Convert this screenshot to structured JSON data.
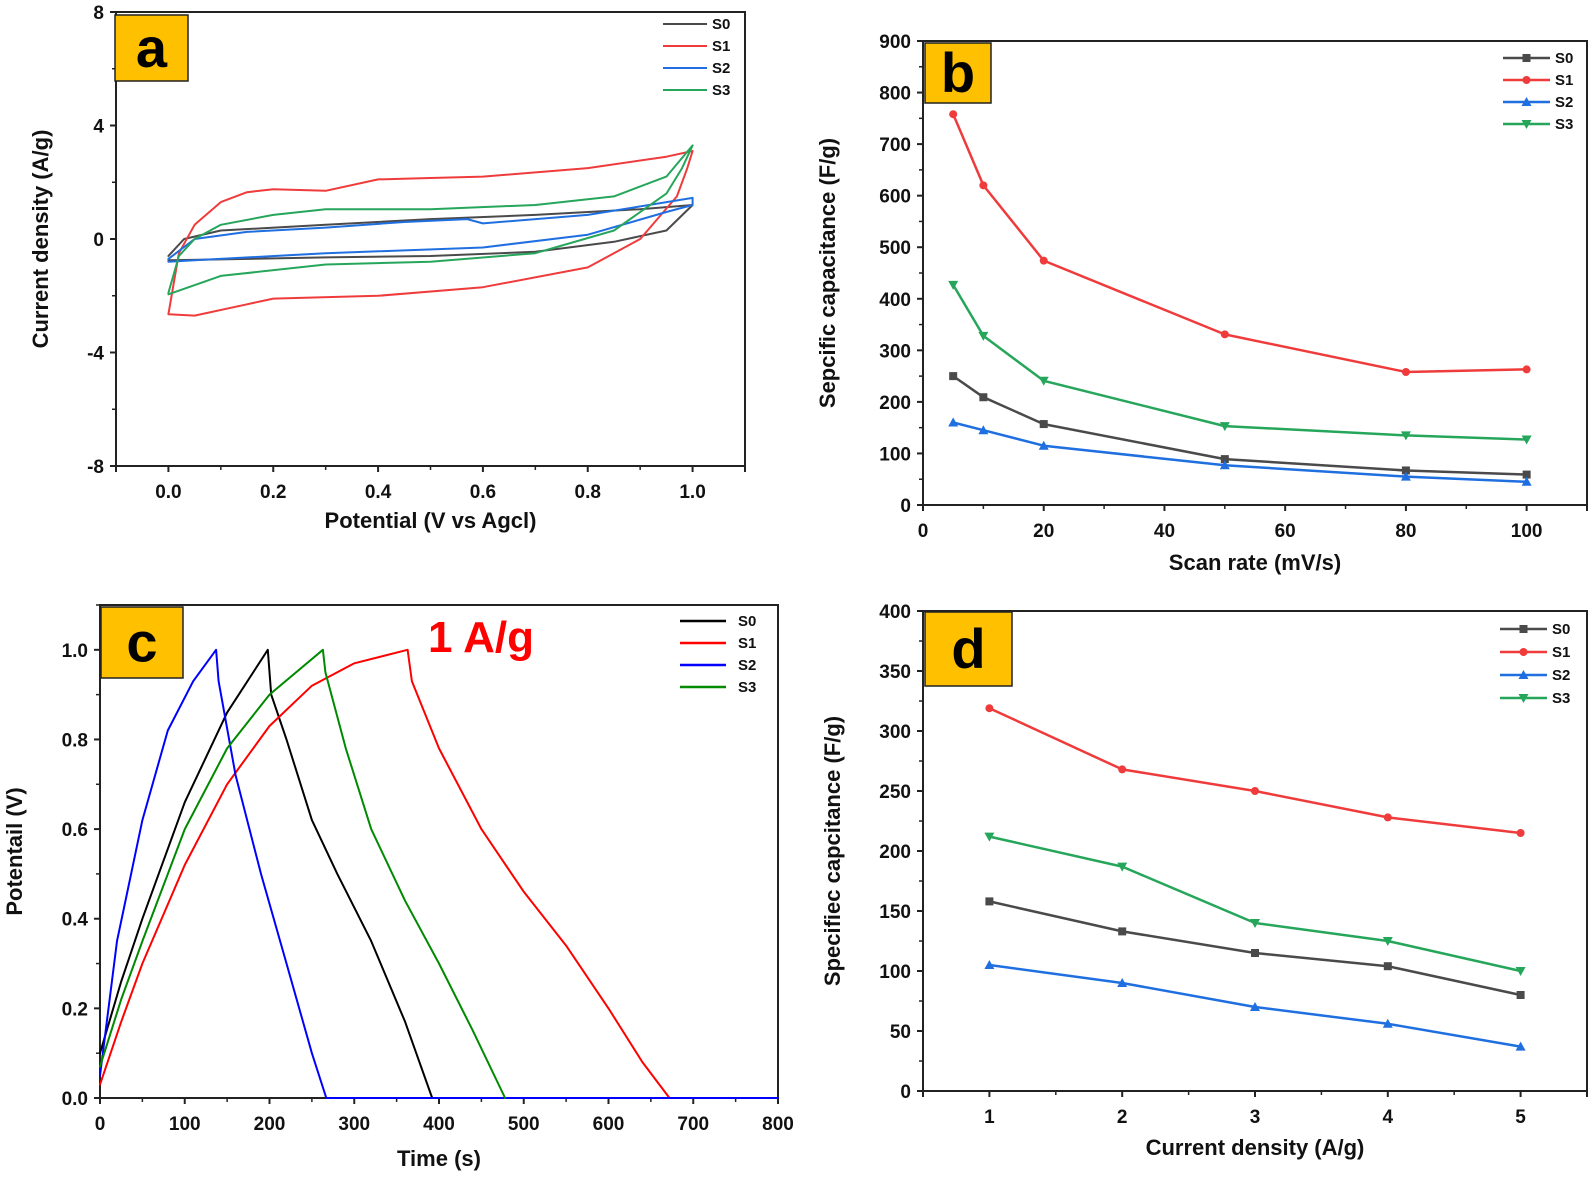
{
  "colors": {
    "S0_scatter": "#4a4a4a",
    "S1_scatter": "#ef3b3b",
    "S2_scatter": "#1f6fe0",
    "S3_scatter": "#26a65b",
    "S0_gcd": "#000000",
    "S1_gcd": "#ff0000",
    "S2_gcd": "#0000ff",
    "S3_gcd": "#008a00",
    "label_box": "#ffc000",
    "annotation": "#ff0000"
  },
  "chart_data": [
    {
      "panel": "a",
      "type": "line",
      "title": "",
      "xlabel": "Potential (V vs Agcl)",
      "ylabel": "Current density (A/g)",
      "xlim": [
        -0.1,
        1.1
      ],
      "ylim": [
        -8,
        8
      ],
      "xticks": [
        "0.0",
        "0.2",
        "0.4",
        "0.6",
        "0.8",
        "1.0"
      ],
      "xtick_values": [
        0.0,
        0.2,
        0.4,
        0.6,
        0.8,
        1.0
      ],
      "yticks": [
        "8",
        "4",
        "0",
        "-4",
        "-8"
      ],
      "ytick_values": [
        8,
        4,
        0,
        -4,
        -8
      ],
      "grid": false,
      "legend_position": "top-right",
      "series": [
        {
          "name": "S0",
          "color_key": "S0_scatter",
          "x": [
            0,
            0.03,
            0.1,
            0.3,
            0.5,
            0.7,
            0.9,
            1.0,
            0.95,
            0.85,
            0.7,
            0.5,
            0.3,
            0.1,
            0
          ],
          "y": [
            -0.6,
            0,
            0.3,
            0.5,
            0.7,
            0.85,
            1.05,
            1.2,
            0.3,
            -0.1,
            -0.45,
            -0.6,
            -0.65,
            -0.72,
            -0.75
          ]
        },
        {
          "name": "S1",
          "color_key": "S1_scatter",
          "x": [
            0,
            0.02,
            0.05,
            0.1,
            0.15,
            0.2,
            0.3,
            0.4,
            0.5,
            0.6,
            0.8,
            0.95,
            1.0,
            0.99,
            0.97,
            0.9,
            0.8,
            0.6,
            0.4,
            0.2,
            0.15,
            0.05,
            0
          ],
          "y": [
            -2.65,
            -0.5,
            0.5,
            1.3,
            1.65,
            1.75,
            1.7,
            2.1,
            2.15,
            2.2,
            2.5,
            2.9,
            3.1,
            2.5,
            1.5,
            0,
            -1.0,
            -1.7,
            -2.0,
            -2.1,
            -2.3,
            -2.7,
            -2.65
          ]
        },
        {
          "name": "S2",
          "color_key": "S2_scatter",
          "x": [
            0,
            0.05,
            0.15,
            0.3,
            0.45,
            0.57,
            0.6,
            0.8,
            1.0,
            1.0,
            0.95,
            0.8,
            0.6,
            0.3,
            0.05,
            0
          ],
          "y": [
            -0.7,
            0,
            0.25,
            0.4,
            0.6,
            0.7,
            0.55,
            0.85,
            1.45,
            1.2,
            0.95,
            0.15,
            -0.3,
            -0.5,
            -0.75,
            -0.8
          ]
        },
        {
          "name": "S3",
          "color_key": "S3_scatter",
          "x": [
            0,
            0.02,
            0.05,
            0.1,
            0.2,
            0.3,
            0.5,
            0.7,
            0.85,
            0.95,
            1.0,
            0.98,
            0.95,
            0.85,
            0.7,
            0.5,
            0.3,
            0.1,
            0
          ],
          "y": [
            -1.9,
            -0.6,
            0,
            0.5,
            0.85,
            1.05,
            1.05,
            1.2,
            1.5,
            2.2,
            3.3,
            2.5,
            1.6,
            0.3,
            -0.5,
            -0.8,
            -0.9,
            -1.3,
            -1.95
          ]
        }
      ]
    },
    {
      "panel": "b",
      "type": "line",
      "title": "",
      "xlabel": "Scan rate (mV/s)",
      "ylabel": "Sepcific capacitance (F/g)",
      "xlim": [
        0,
        110
      ],
      "ylim": [
        0,
        900
      ],
      "xticks": [
        "0",
        "20",
        "40",
        "60",
        "80",
        "100"
      ],
      "xtick_values": [
        0,
        20,
        40,
        60,
        80,
        100
      ],
      "yticks": [
        "0",
        "100",
        "200",
        "300",
        "400",
        "500",
        "600",
        "700",
        "800",
        "900"
      ],
      "ytick_values": [
        0,
        100,
        200,
        300,
        400,
        500,
        600,
        700,
        800,
        900
      ],
      "grid": false,
      "legend_position": "top-right",
      "x": [
        5,
        10,
        20,
        50,
        80,
        100
      ],
      "series": [
        {
          "name": "S0",
          "marker": "square",
          "color_key": "S0_scatter",
          "values": [
            250,
            209,
            157,
            89,
            67,
            59
          ]
        },
        {
          "name": "S1",
          "marker": "circle",
          "color_key": "S1_scatter",
          "values": [
            758,
            620,
            474,
            331,
            258,
            263
          ]
        },
        {
          "name": "S2",
          "marker": "triangle-up",
          "color_key": "S2_scatter",
          "values": [
            160,
            145,
            115,
            77,
            55,
            45
          ]
        },
        {
          "name": "S3",
          "marker": "triangle-down",
          "color_key": "S3_scatter",
          "values": [
            427,
            328,
            241,
            153,
            135,
            127
          ]
        }
      ]
    },
    {
      "panel": "c",
      "type": "line",
      "title": "",
      "annotation": "1 A/g",
      "xlabel": "Time (s)",
      "ylabel": "Potentail (V)",
      "xlim": [
        0,
        800
      ],
      "ylim": [
        0,
        1.1
      ],
      "xticks": [
        "0",
        "100",
        "200",
        "300",
        "400",
        "500",
        "600",
        "700",
        "800"
      ],
      "xtick_values": [
        0,
        100,
        200,
        300,
        400,
        500,
        600,
        700,
        800
      ],
      "yticks": [
        "0.0",
        "0.2",
        "0.4",
        "0.6",
        "0.8",
        "1.0"
      ],
      "ytick_values": [
        0.0,
        0.2,
        0.4,
        0.6,
        0.8,
        1.0
      ],
      "grid": false,
      "legend_position": "top-right",
      "series": [
        {
          "name": "S0",
          "color_key": "S0_gcd",
          "x": [
            0,
            25,
            50,
            100,
            150,
            198,
            202,
            220,
            250,
            280,
            320,
            360,
            392
          ],
          "y": [
            0.1,
            0.26,
            0.4,
            0.66,
            0.86,
            1.0,
            0.9,
            0.8,
            0.62,
            0.5,
            0.35,
            0.17,
            0
          ]
        },
        {
          "name": "S1",
          "color_key": "S1_gcd",
          "x": [
            0,
            25,
            50,
            100,
            150,
            200,
            250,
            300,
            363,
            368,
            400,
            450,
            500,
            550,
            600,
            640,
            672
          ],
          "y": [
            0.03,
            0.17,
            0.3,
            0.52,
            0.7,
            0.83,
            0.92,
            0.97,
            1.0,
            0.93,
            0.78,
            0.6,
            0.46,
            0.34,
            0.2,
            0.08,
            0
          ]
        },
        {
          "name": "S2",
          "color_key": "S2_gcd",
          "x": [
            0,
            20,
            50,
            80,
            110,
            137,
            140,
            160,
            190,
            220,
            250,
            267,
            800
          ],
          "y": [
            0.05,
            0.35,
            0.62,
            0.82,
            0.93,
            1.0,
            0.93,
            0.72,
            0.5,
            0.3,
            0.1,
            0,
            0
          ]
        },
        {
          "name": "S3",
          "color_key": "S3_gcd",
          "x": [
            0,
            25,
            50,
            100,
            150,
            200,
            263,
            266,
            290,
            320,
            360,
            400,
            440,
            478
          ],
          "y": [
            0.07,
            0.22,
            0.35,
            0.6,
            0.78,
            0.9,
            1.0,
            0.95,
            0.78,
            0.6,
            0.44,
            0.3,
            0.15,
            0
          ]
        }
      ]
    },
    {
      "panel": "d",
      "type": "line",
      "title": "",
      "xlabel": "Current density (A/g)",
      "ylabel": "Specifiec capcitance (F/g)",
      "xlim": [
        0.5,
        5.5
      ],
      "ylim": [
        0,
        400
      ],
      "xticks": [
        "1",
        "2",
        "3",
        "4",
        "5"
      ],
      "xtick_values": [
        1,
        2,
        3,
        4,
        5
      ],
      "yticks": [
        "0",
        "50",
        "100",
        "150",
        "200",
        "250",
        "300",
        "350",
        "400"
      ],
      "ytick_values": [
        0,
        50,
        100,
        150,
        200,
        250,
        300,
        350,
        400
      ],
      "grid": false,
      "legend_position": "top-right",
      "x": [
        1,
        2,
        3,
        4,
        5
      ],
      "series": [
        {
          "name": "S0",
          "marker": "square",
          "color_key": "S0_scatter",
          "values": [
            158,
            133,
            115,
            104,
            80
          ]
        },
        {
          "name": "S1",
          "marker": "circle",
          "color_key": "S1_scatter",
          "values": [
            319,
            268,
            250,
            228,
            215
          ]
        },
        {
          "name": "S2",
          "marker": "triangle-up",
          "color_key": "S2_scatter",
          "values": [
            105,
            90,
            70,
            56,
            37
          ]
        },
        {
          "name": "S3",
          "marker": "triangle-down",
          "color_key": "S3_scatter",
          "values": [
            212,
            187,
            140,
            125,
            100
          ]
        }
      ]
    }
  ]
}
